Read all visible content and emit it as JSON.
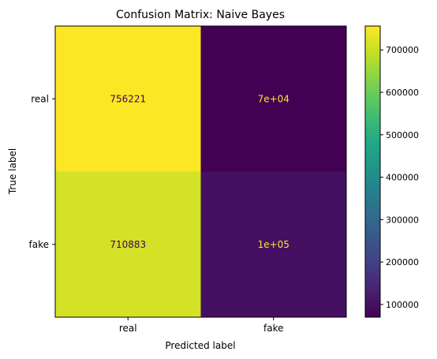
{
  "chart_data": {
    "type": "heatmap",
    "title": "Confusion Matrix: Naive Bayes",
    "xlabel": "Predicted label",
    "ylabel": "True label",
    "x_categories": [
      "real",
      "fake"
    ],
    "y_categories": [
      "real",
      "fake"
    ],
    "values": [
      [
        756221,
        70000
      ],
      [
        710883,
        100000
      ]
    ],
    "cell_labels": [
      [
        "756221",
        "7e+04"
      ],
      [
        "710883",
        "1e+05"
      ]
    ],
    "colormap": "viridis",
    "colorbar": {
      "range": [
        70000,
        756221
      ],
      "ticks": [
        100000,
        200000,
        300000,
        400000,
        500000,
        600000,
        700000
      ],
      "tick_labels": [
        "100000",
        "200000",
        "300000",
        "400000",
        "500000",
        "600000",
        "700000"
      ]
    }
  }
}
